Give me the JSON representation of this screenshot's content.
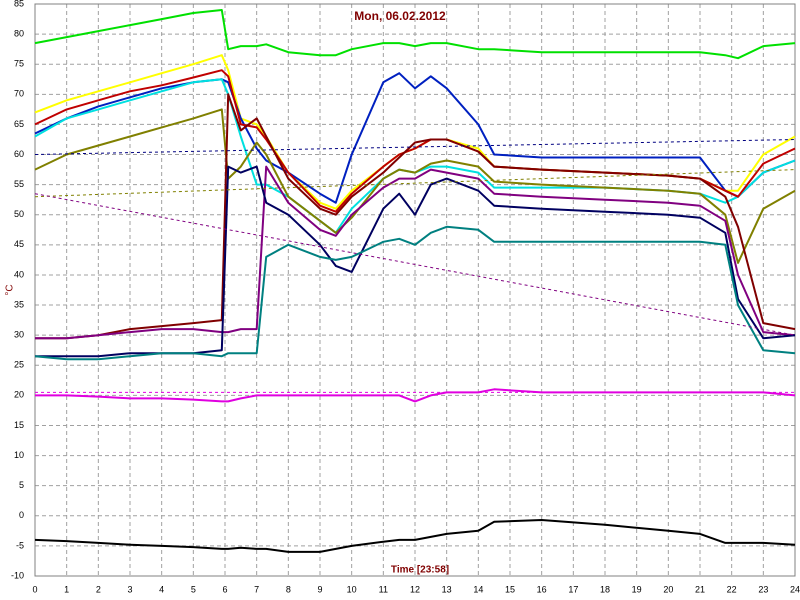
{
  "chart_data": {
    "type": "line",
    "title": "Mon, 06.02.2012",
    "x_label": "Time [23:58]",
    "y_label": "°C",
    "grid": true,
    "xlim": [
      0,
      24
    ],
    "ylim": [
      -10,
      85
    ],
    "xticks": [
      0,
      1,
      2,
      3,
      4,
      5,
      6,
      7,
      8,
      9,
      10,
      11,
      12,
      13,
      14,
      15,
      16,
      17,
      18,
      19,
      20,
      21,
      22,
      23,
      24
    ],
    "yticks": [
      -10,
      -5,
      0,
      5,
      10,
      15,
      20,
      25,
      30,
      35,
      40,
      45,
      50,
      55,
      60,
      65,
      70,
      75,
      80,
      85
    ],
    "x": [
      0,
      1,
      2,
      3,
      4,
      5,
      5.9,
      6.1,
      6.5,
      7,
      7.3,
      8,
      9,
      9.5,
      10,
      11,
      11.5,
      12,
      12.5,
      13,
      14,
      14.5,
      16,
      18,
      20,
      21,
      21.8,
      22.2,
      23,
      24
    ],
    "series": [
      {
        "color": "#00e000",
        "values": [
          78.5,
          79.5,
          80.5,
          81.5,
          82.5,
          83.5,
          84,
          77.5,
          78,
          78,
          78.3,
          77,
          76.5,
          76.5,
          77.5,
          78.5,
          78.5,
          78,
          78.5,
          78.5,
          77.5,
          77.5,
          77,
          77,
          77,
          77,
          76.5,
          76,
          78,
          78.5
        ]
      },
      {
        "color": "#ffff00",
        "values": [
          67,
          69,
          70.5,
          72,
          73.5,
          75,
          76.5,
          74,
          66,
          65,
          63,
          57,
          52,
          51,
          54,
          58,
          60,
          61,
          62.5,
          62.5,
          61,
          58,
          57.5,
          57,
          56.5,
          56,
          54,
          54,
          60,
          63
        ]
      },
      {
        "color": "#0020c0",
        "values": [
          63.5,
          66,
          68,
          69.5,
          71,
          72,
          72.5,
          72,
          66,
          61,
          59,
          57,
          53.5,
          52,
          60,
          72,
          73.5,
          71,
          73,
          71,
          65,
          60,
          59.5,
          59.5,
          59.5,
          59.5,
          54,
          53,
          57,
          59
        ]
      },
      {
        "color": "#00e0e0",
        "values": [
          63,
          66,
          67.5,
          69,
          70.5,
          72,
          72.5,
          70,
          63,
          55,
          55,
          53,
          49,
          47,
          51,
          56,
          57.5,
          57,
          58,
          58,
          57,
          54.5,
          54.5,
          54.5,
          54,
          53.5,
          52,
          53,
          57,
          59
        ]
      },
      {
        "color": "#c00000",
        "values": [
          65,
          67.5,
          69,
          70.5,
          71.5,
          72.8,
          74,
          73,
          65,
          64.5,
          62.5,
          57,
          51.5,
          50.5,
          53.5,
          58,
          60,
          61,
          62.5,
          62.5,
          60.5,
          58,
          57.5,
          57,
          56.5,
          56,
          54,
          53,
          58.5,
          61
        ]
      },
      {
        "color": "#808000",
        "values": [
          57.5,
          60,
          61.5,
          63,
          64.5,
          66,
          67.5,
          56,
          58,
          62,
          60,
          53,
          49,
          47,
          49.5,
          56,
          57.5,
          57,
          58.5,
          59,
          58,
          55.5,
          55,
          54.5,
          54,
          53.5,
          50,
          42,
          51,
          54
        ]
      },
      {
        "color": "#800000",
        "values": [
          29.5,
          29.5,
          30,
          31,
          31.5,
          32,
          32.5,
          70,
          64,
          66,
          63,
          56,
          51,
          50,
          53,
          57,
          59.5,
          62,
          62.5,
          62.5,
          60.5,
          58,
          57.5,
          57,
          56.5,
          56,
          53,
          48,
          32,
          31
        ]
      },
      {
        "color": "#800080",
        "values": [
          29.5,
          29.5,
          30,
          30.5,
          31,
          31,
          30.5,
          30.5,
          31,
          31,
          58,
          52,
          47.5,
          46.5,
          50,
          54.5,
          56,
          56,
          57.5,
          57,
          56,
          53.5,
          53,
          52.5,
          52,
          51.5,
          49,
          40,
          30.5,
          30
        ]
      },
      {
        "color": "#000060",
        "values": [
          26.5,
          26.5,
          26.5,
          27,
          27,
          27,
          27.5,
          58,
          57,
          58,
          52,
          50,
          45,
          41.5,
          40.5,
          51,
          53.5,
          50,
          55,
          56,
          54,
          51.5,
          51,
          50.5,
          50,
          49.5,
          47,
          36,
          29.5,
          30
        ]
      },
      {
        "color": "#008080",
        "values": [
          26.5,
          26,
          26,
          26.5,
          27,
          27,
          26.5,
          27,
          27,
          27,
          43,
          45,
          43,
          42.5,
          43,
          45.5,
          46,
          45,
          47,
          48,
          47.5,
          45.5,
          45.5,
          45.5,
          45.5,
          45.5,
          45,
          35,
          27.5,
          27
        ]
      },
      {
        "color": "#e000e0",
        "values": [
          20,
          20,
          19.8,
          19.5,
          19.5,
          19.3,
          19,
          19,
          19.5,
          20,
          20,
          20,
          20,
          20,
          20,
          20,
          20,
          19,
          20,
          20.5,
          20.5,
          21,
          20.5,
          20.5,
          20.5,
          20.5,
          20.5,
          20.5,
          20.5,
          20
        ]
      },
      {
        "color": "#000000",
        "values": [
          -4,
          -4.2,
          -4.5,
          -4.8,
          -5,
          -5.2,
          -5.5,
          -5.5,
          -5.3,
          -5.5,
          -5.5,
          -6,
          -6,
          -5.5,
          -5,
          -4.3,
          -4,
          -4,
          -3.5,
          -3,
          -2.5,
          -1,
          -0.7,
          -1.5,
          -2.5,
          -3,
          -4.5,
          -4.5,
          -4.5,
          -4.8
        ]
      },
      {
        "color": "#000080",
        "dashed": true,
        "x": [
          0,
          24
        ],
        "values": [
          60,
          62.5
        ]
      },
      {
        "color": "#808000",
        "dashed": true,
        "x": [
          0,
          24
        ],
        "values": [
          53,
          57.5
        ]
      },
      {
        "color": "#800080",
        "dashed": true,
        "x": [
          0,
          24
        ],
        "values": [
          53.5,
          30
        ]
      },
      {
        "color": "#e000e0",
        "dashed": true,
        "x": [
          0,
          24
        ],
        "values": [
          20.5,
          20.5
        ]
      }
    ]
  }
}
